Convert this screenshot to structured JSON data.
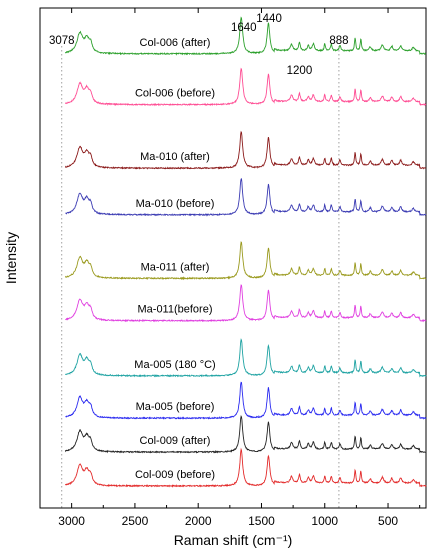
{
  "chart_data": {
    "type": "line",
    "xlabel": "Raman shift (cm⁻¹)",
    "ylabel": "Intensity",
    "xlim": [
      3250,
      200
    ],
    "x_reversed": true,
    "xticks": [
      3000,
      2500,
      2000,
      1500,
      1000,
      500
    ],
    "xtick_labels": [
      "3000",
      "2500",
      "2000",
      "1500",
      "1000",
      "500"
    ],
    "y_ticks_shown": false,
    "reference_lines": [
      {
        "x": 3078,
        "label": "3078",
        "style": "dotted"
      },
      {
        "x": 888,
        "label": "888",
        "style": "dotted"
      }
    ],
    "peak_annotations": [
      {
        "x": 1640,
        "label": "1640"
      },
      {
        "x": 1440,
        "label": "1440"
      },
      {
        "x": 1200,
        "label": "1200"
      }
    ],
    "peaks_cm": [
      2935,
      2880,
      1660,
      1445,
      1262,
      1200,
      1090,
      1000,
      948,
      880,
      760,
      715,
      545,
      400
    ],
    "series": [
      {
        "name": "Col-006 (after)",
        "color": "#2ca02c",
        "baseline_offset": 10.2,
        "scale": 1.0
      },
      {
        "name": "Col-006 (before)",
        "color": "#ff4d94",
        "baseline_offset": 9.0,
        "scale": 1.0
      },
      {
        "name": "Ma-010 (after)",
        "color": "#8b1a1a",
        "baseline_offset": 7.5,
        "scale": 1.0
      },
      {
        "name": "Ma-010 (before)",
        "color": "#3b3bb3",
        "baseline_offset": 6.4,
        "scale": 1.0
      },
      {
        "name": "Ma-011 (after)",
        "color": "#9a9a1e",
        "baseline_offset": 4.9,
        "scale": 1.0
      },
      {
        "name": "Ma-011(before)",
        "color": "#e040e0",
        "baseline_offset": 3.9,
        "scale": 1.0
      },
      {
        "name": "Ma-005 (180 °C)",
        "color": "#1fa3a3",
        "baseline_offset": 2.6,
        "scale": 1.0
      },
      {
        "name": "Ma-005 (before)",
        "color": "#2a2af0",
        "baseline_offset": 1.6,
        "scale": 1.0
      },
      {
        "name": "Col-009 (after)",
        "color": "#222222",
        "baseline_offset": 0.8,
        "scale": 1.0
      },
      {
        "name": "Col-009 (before)",
        "color": "#e32b2b",
        "baseline_offset": 0.0,
        "scale": 1.0
      }
    ]
  }
}
